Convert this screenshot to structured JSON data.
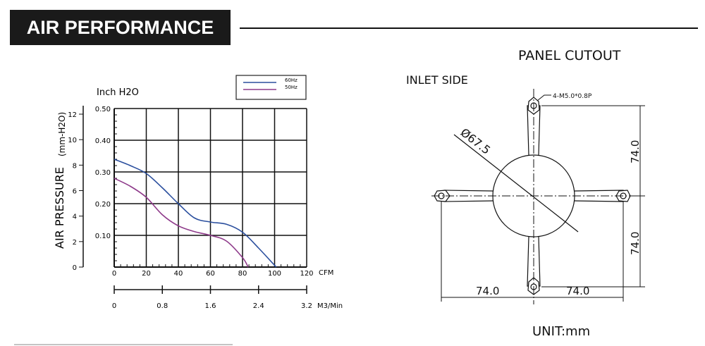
{
  "header": {
    "title": "AIR PERFORMANCE"
  },
  "chart_data": {
    "type": "line",
    "title": "",
    "ylabel": "AIR PRESSURE",
    "ylabel_unit": "(mm-H2O)",
    "y2label": "Inch H2O",
    "xlabel": "CFM",
    "x2label": "M3/Min",
    "xlim": [
      0,
      120
    ],
    "ylim": [
      0,
      0.5
    ],
    "ylim_mm": [
      0,
      12.7
    ],
    "grid": true,
    "legend_placement": "top-right",
    "x_ticks": [
      "0",
      "20",
      "40",
      "60",
      "80",
      "100",
      "120"
    ],
    "y_ticks": [
      "0.10",
      "0.20",
      "0.30",
      "0.40",
      "0.50"
    ],
    "mm_ticks": [
      "0",
      "2",
      "4",
      "6",
      "8",
      "10",
      "12"
    ],
    "m3_ticks": [
      "0",
      "0.8",
      "1.6",
      "2.4",
      "3.2"
    ],
    "series": [
      {
        "name": "60Hz",
        "color": "#2b4f9e",
        "x": [
          0,
          10,
          20,
          30,
          40,
          50,
          60,
          70,
          80,
          90,
          101
        ],
        "y": [
          0.34,
          0.32,
          0.295,
          0.25,
          0.2,
          0.155,
          0.142,
          0.135,
          0.11,
          0.06,
          0
        ]
      },
      {
        "name": "50Hz",
        "color": "#8e3a8a",
        "x": [
          0,
          10,
          20,
          30,
          40,
          50,
          60,
          70,
          80,
          83.5
        ],
        "y": [
          0.28,
          0.255,
          0.22,
          0.165,
          0.13,
          0.112,
          0.1,
          0.082,
          0.03,
          0
        ]
      }
    ]
  },
  "cutout": {
    "title": "PANEL CUTOUT",
    "subtitle": "INLET SIDE",
    "hole_label": "4-M5.0*0.8P",
    "diameter_label": "Ø67.5",
    "dim_v_top": "74.0",
    "dim_v_bottom": "74.0",
    "dim_h_left": "74.0",
    "dim_h_right": "74.0",
    "unit": "UNIT:mm"
  }
}
